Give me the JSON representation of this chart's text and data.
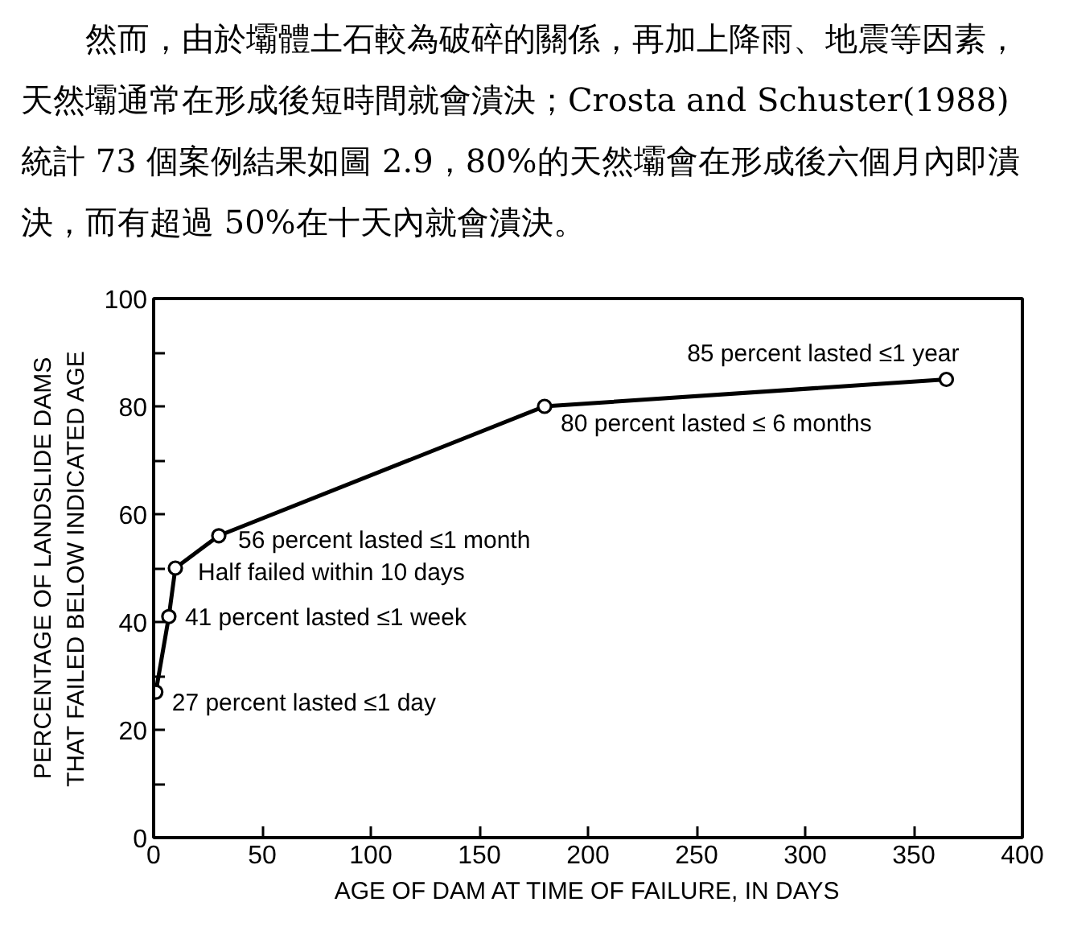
{
  "chart_data": {
    "type": "line",
    "annotations": [
      "然而，由於壩體土石較為破碎的關係，再加上降雨、地震等因素，天然壩通常在形成後短時間就會潰決；Crosta and Schuster(1988)統計 73 個案例結果如圖 2.9，80%的天然壩會在形成後六個月內即潰決，而有超過 50%在十天內就會潰決。",
      {
        "text": "85 percent lasted ≤1 year",
        "x": 365,
        "y": 85
      },
      {
        "text": "80 percent lasted ≤ 6 months",
        "x": 180,
        "y": 80
      },
      {
        "text": "56 percent lasted ≤1 month",
        "x": 30,
        "y": 56
      },
      {
        "text": "Half failed within 10 days",
        "x": 10,
        "y": 50
      },
      {
        "text": "41 percent lasted ≤1 week",
        "x": 7,
        "y": 41
      },
      {
        "text": "27 percent lasted ≤1 day",
        "x": 1,
        "y": 27
      }
    ],
    "xlabel": "AGE OF DAM AT TIME OF FAILURE, IN DAYS",
    "ylabel": "PERCENTAGE OF LANDSLIDE DAMS\nTHAT FAILED BELOW INDICATED AGE",
    "x": [
      1,
      7,
      10,
      30,
      180,
      365
    ],
    "series": [
      {
        "color": "#000000",
        "values": [
          27,
          41,
          50,
          56,
          80,
          85
        ]
      }
    ],
    "xlim": [
      0,
      400
    ],
    "ylim": [
      0,
      100
    ],
    "xticks": [
      0,
      50,
      100,
      150,
      200,
      250,
      300,
      350,
      400
    ],
    "yticks": [
      0,
      {
        "value": 10,
        "label": null
      },
      20,
      {
        "value": 30,
        "label": null
      },
      40,
      {
        "value": 50,
        "label": null
      },
      60,
      {
        "value": 70,
        "label": null
      },
      80,
      {
        "value": 90,
        "label": null
      },
      100
    ],
    "marker": "circle",
    "line_style": "solid"
  }
}
